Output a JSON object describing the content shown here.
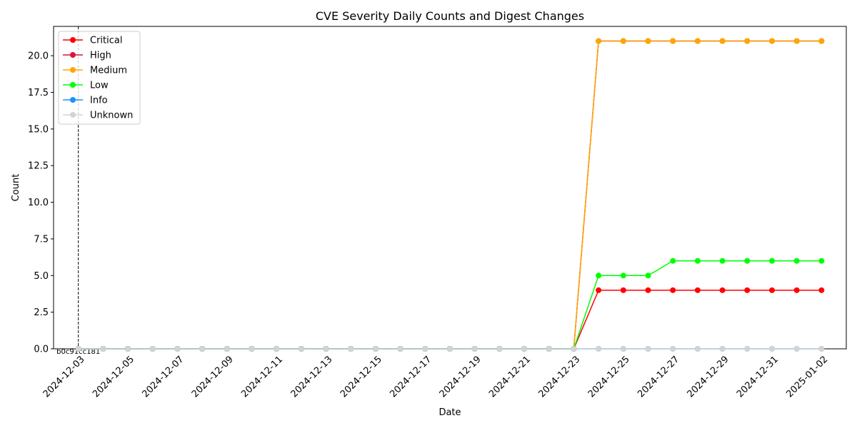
{
  "chart_data": {
    "type": "line",
    "title": "CVE Severity Daily Counts and Digest Changes",
    "xlabel": "Date",
    "ylabel": "Count",
    "ylim": [
      0,
      22
    ],
    "yticks": [
      0.0,
      2.5,
      5.0,
      7.5,
      10.0,
      12.5,
      15.0,
      17.5,
      20.0
    ],
    "ytick_labels": [
      "0.0",
      "2.5",
      "5.0",
      "7.5",
      "10.0",
      "12.5",
      "15.0",
      "17.5",
      "20.0"
    ],
    "xlim": [
      "2024-12-02",
      "2025-01-03"
    ],
    "xtick_labels": [
      "2024-12-03",
      "2024-12-05",
      "2024-12-07",
      "2024-12-09",
      "2024-12-11",
      "2024-12-13",
      "2024-12-15",
      "2024-12-17",
      "2024-12-19",
      "2024-12-21",
      "2024-12-23",
      "2024-12-25",
      "2024-12-27",
      "2024-12-29",
      "2024-12-31",
      "2025-01-02"
    ],
    "x": [
      "2024-12-03",
      "2024-12-04",
      "2024-12-05",
      "2024-12-06",
      "2024-12-07",
      "2024-12-08",
      "2024-12-09",
      "2024-12-10",
      "2024-12-11",
      "2024-12-12",
      "2024-12-13",
      "2024-12-14",
      "2024-12-15",
      "2024-12-16",
      "2024-12-17",
      "2024-12-18",
      "2024-12-19",
      "2024-12-20",
      "2024-12-21",
      "2024-12-22",
      "2024-12-23",
      "2024-12-24",
      "2024-12-25",
      "2024-12-26",
      "2024-12-27",
      "2024-12-28",
      "2024-12-29",
      "2024-12-30",
      "2024-12-31",
      "2025-01-01",
      "2025-01-02"
    ],
    "series": [
      {
        "name": "Critical",
        "color": "#ff0000",
        "values": [
          0,
          0,
          0,
          0,
          0,
          0,
          0,
          0,
          0,
          0,
          0,
          0,
          0,
          0,
          0,
          0,
          0,
          0,
          0,
          0,
          0,
          4,
          4,
          4,
          4,
          4,
          4,
          4,
          4,
          4,
          4
        ]
      },
      {
        "name": "High",
        "color": "#dc143c",
        "values": [
          0,
          0,
          0,
          0,
          0,
          0,
          0,
          0,
          0,
          0,
          0,
          0,
          0,
          0,
          0,
          0,
          0,
          0,
          0,
          0,
          0,
          21,
          21,
          21,
          21,
          21,
          21,
          21,
          21,
          21,
          21
        ]
      },
      {
        "name": "Medium",
        "color": "#ffa500",
        "values": [
          0,
          0,
          0,
          0,
          0,
          0,
          0,
          0,
          0,
          0,
          0,
          0,
          0,
          0,
          0,
          0,
          0,
          0,
          0,
          0,
          0,
          21,
          21,
          21,
          21,
          21,
          21,
          21,
          21,
          21,
          21
        ]
      },
      {
        "name": "Low",
        "color": "#00ff00",
        "values": [
          0,
          0,
          0,
          0,
          0,
          0,
          0,
          0,
          0,
          0,
          0,
          0,
          0,
          0,
          0,
          0,
          0,
          0,
          0,
          0,
          0,
          5,
          5,
          5,
          6,
          6,
          6,
          6,
          6,
          6,
          6
        ]
      },
      {
        "name": "Info",
        "color": "#1e90ff",
        "values": [
          0,
          0,
          0,
          0,
          0,
          0,
          0,
          0,
          0,
          0,
          0,
          0,
          0,
          0,
          0,
          0,
          0,
          0,
          0,
          0,
          0,
          0,
          0,
          0,
          0,
          0,
          0,
          0,
          0,
          0,
          0
        ]
      },
      {
        "name": "Unknown",
        "color": "#d3d3d3",
        "values": [
          0,
          0,
          0,
          0,
          0,
          0,
          0,
          0,
          0,
          0,
          0,
          0,
          0,
          0,
          0,
          0,
          0,
          0,
          0,
          0,
          0,
          0,
          0,
          0,
          0,
          0,
          0,
          0,
          0,
          0,
          0
        ]
      }
    ],
    "annotations": [
      {
        "type": "vline",
        "x": "2024-12-03",
        "label": "b0c91cc181"
      }
    ],
    "legend_position": "top-left",
    "grid": false
  }
}
